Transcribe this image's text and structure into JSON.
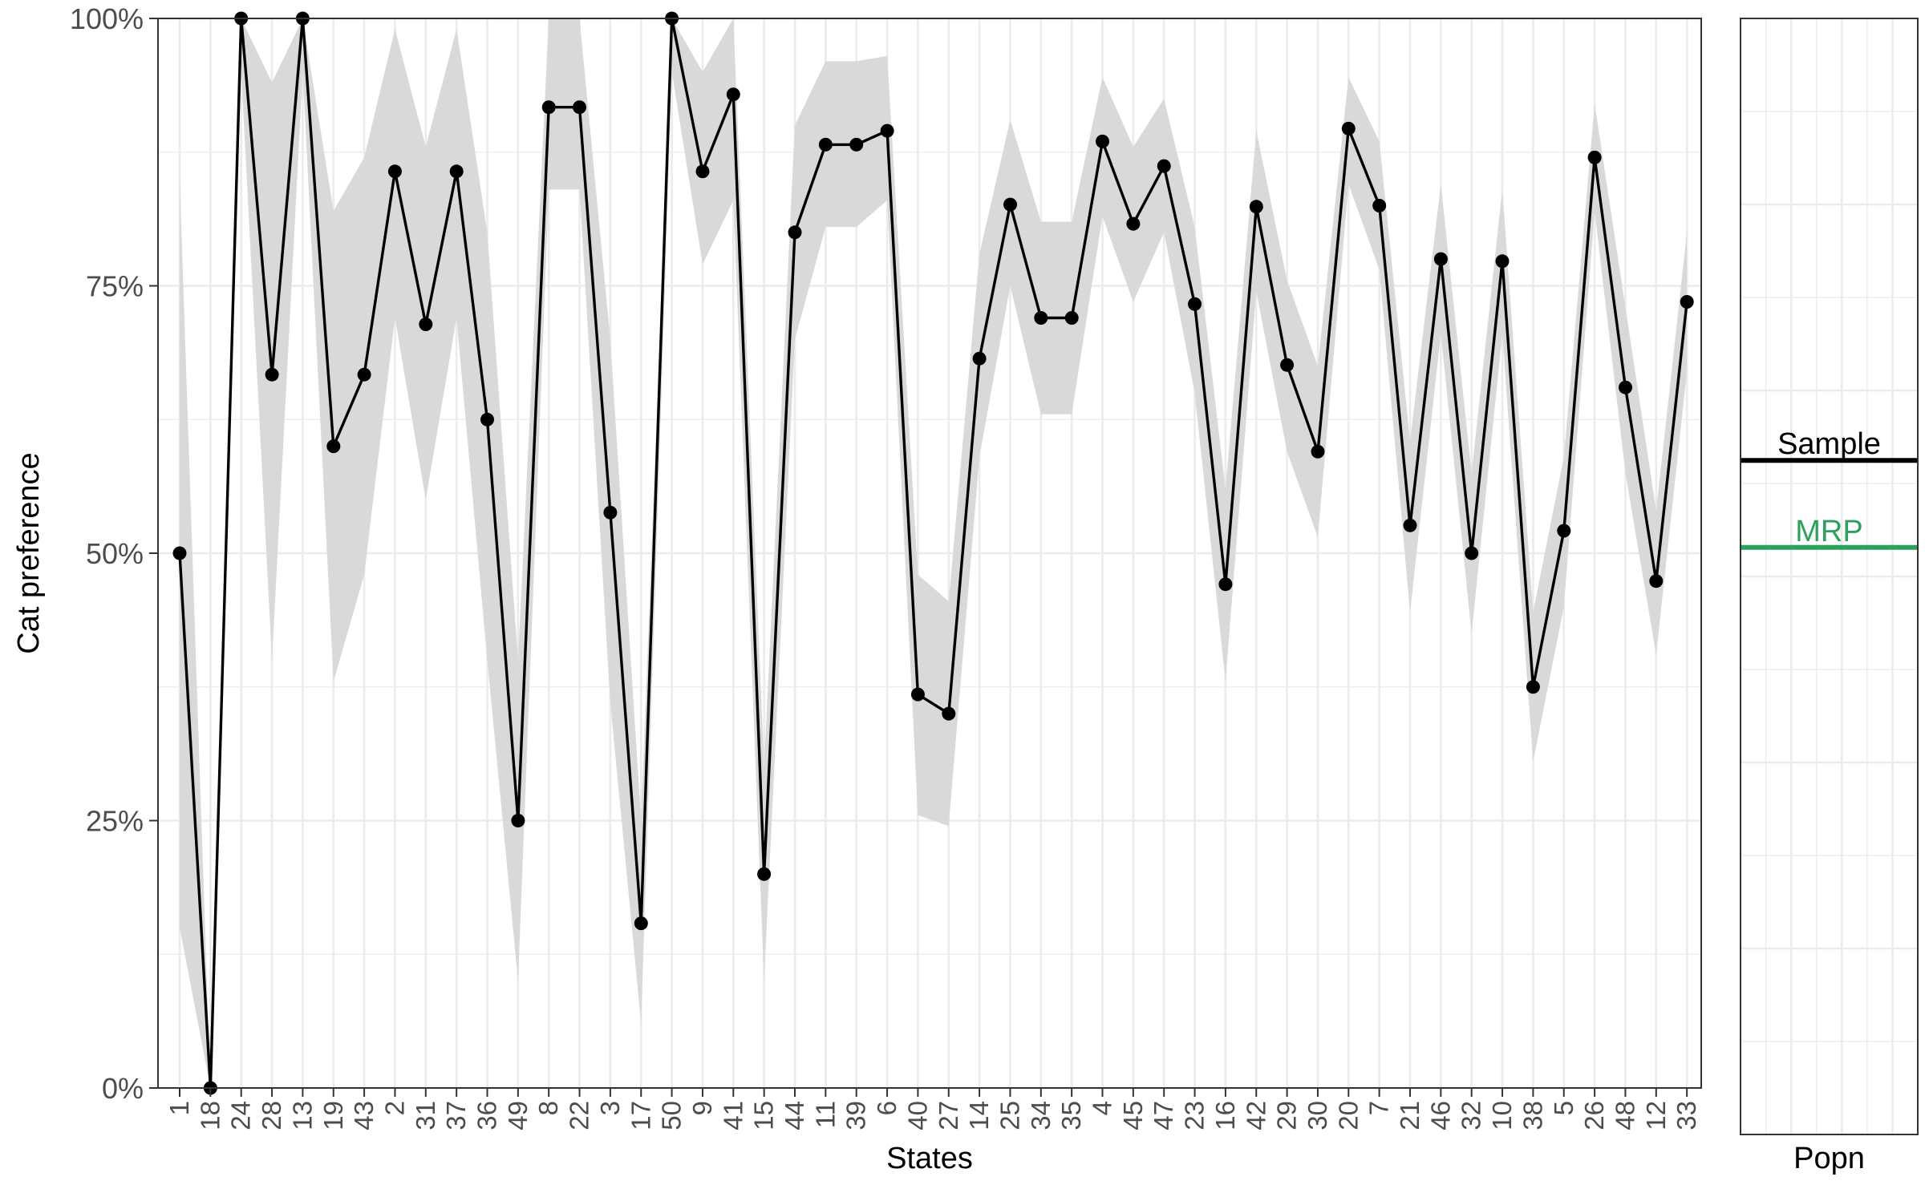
{
  "chart_data": {
    "type": "line",
    "xlabel": "States",
    "ylabel": "Cat preference",
    "ylim": [
      0,
      100
    ],
    "y_ticks": [
      "0%",
      "25%",
      "50%",
      "75%",
      "100%"
    ],
    "grid": true,
    "categories": [
      "1",
      "18",
      "24",
      "28",
      "13",
      "19",
      "43",
      "2",
      "31",
      "37",
      "36",
      "49",
      "8",
      "22",
      "3",
      "17",
      "50",
      "9",
      "41",
      "15",
      "44",
      "11",
      "39",
      "6",
      "40",
      "27",
      "14",
      "25",
      "34",
      "35",
      "4",
      "45",
      "47",
      "23",
      "16",
      "42",
      "29",
      "30",
      "20",
      "7",
      "21",
      "46",
      "32",
      "10",
      "38",
      "5",
      "26",
      "48",
      "12",
      "33"
    ],
    "series": [
      {
        "values": [
          50,
          0,
          100,
          66.7,
          100,
          60,
          66.7,
          85.7,
          71.4,
          85.7,
          62.5,
          25,
          91.7,
          91.7,
          53.8,
          15.4,
          100,
          85.7,
          92.9,
          20,
          80,
          88.2,
          88.2,
          89.5,
          36.8,
          35,
          68.2,
          82.6,
          72,
          72,
          88.5,
          80.8,
          86.2,
          73.3,
          47.1,
          82.4,
          67.6,
          59.5,
          89.7,
          82.5,
          52.6,
          77.5,
          50,
          77.3,
          37.5,
          52.1,
          87,
          65.5,
          47.4,
          73.5
        ],
        "lower": [
          15,
          0,
          95,
          40,
          95,
          38,
          48,
          72,
          55,
          72,
          40,
          10,
          84,
          84,
          36,
          6,
          95,
          77,
          83,
          10,
          70,
          80.5,
          80.5,
          83,
          25.5,
          24.5,
          59,
          75,
          63,
          63,
          81.5,
          73.5,
          80,
          65,
          38,
          74.5,
          59.5,
          51.5,
          84.5,
          76.5,
          44.5,
          70.5,
          42.5,
          70.5,
          30.5,
          45,
          82,
          57.5,
          40.5,
          67
        ],
        "upper": [
          85,
          0,
          100,
          94,
          100,
          82,
          87,
          99,
          88,
          99,
          80,
          40,
          100,
          100,
          70,
          25,
          100,
          95,
          100,
          30,
          90,
          96,
          96,
          96.5,
          48,
          45.5,
          78,
          90.5,
          81,
          81,
          94.5,
          88,
          92.5,
          80.5,
          56,
          89.5,
          75.5,
          67.5,
          94.5,
          88.5,
          60.5,
          84.5,
          57.5,
          84,
          44.5,
          59,
          92,
          73,
          54,
          80
        ]
      }
    ],
    "line_color": "#000000",
    "band_color": "#d9d9d9",
    "side_panel": {
      "xlabel": "Popn",
      "lines": [
        {
          "label": "Sample",
          "value": 60.4,
          "color": "#000000"
        },
        {
          "label": "MRP",
          "value": 52.6,
          "color": "#2ea05e"
        }
      ]
    }
  }
}
